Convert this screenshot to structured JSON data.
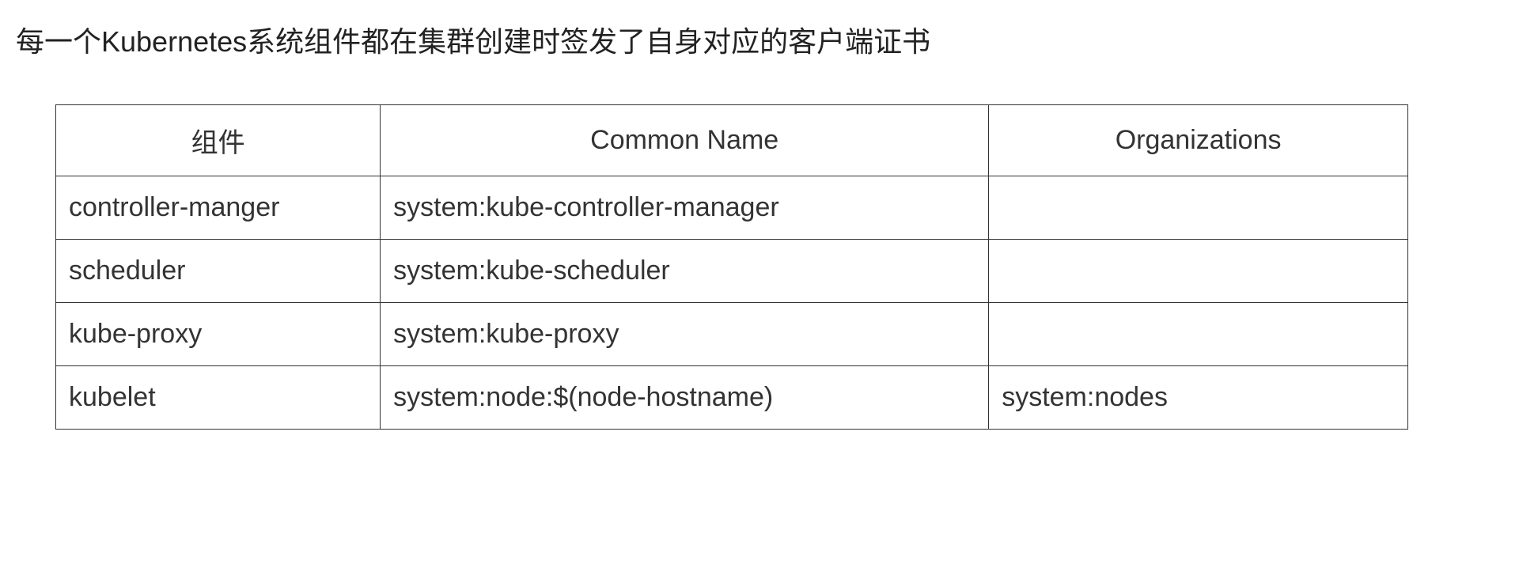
{
  "heading": "每一个Kubernetes系统组件都在集群创建时签发了自身对应的客户端证书",
  "table": {
    "type": "table",
    "border_color": "#333333",
    "background_color": "#ffffff",
    "text_color": "#333333",
    "header_fontsize": 34,
    "cell_fontsize": 34,
    "header_align": "center",
    "cell_align": "left",
    "column_widths_pct": [
      24,
      45,
      31
    ],
    "columns": [
      "组件",
      "Common Name",
      "Organizations"
    ],
    "rows": [
      [
        "controller-manger",
        "system:kube-controller-manager",
        ""
      ],
      [
        "scheduler",
        "system:kube-scheduler",
        ""
      ],
      [
        "kube-proxy",
        "system:kube-proxy",
        ""
      ],
      [
        "kubelet",
        "system:node:$(node-hostname)",
        "system:nodes"
      ]
    ]
  }
}
